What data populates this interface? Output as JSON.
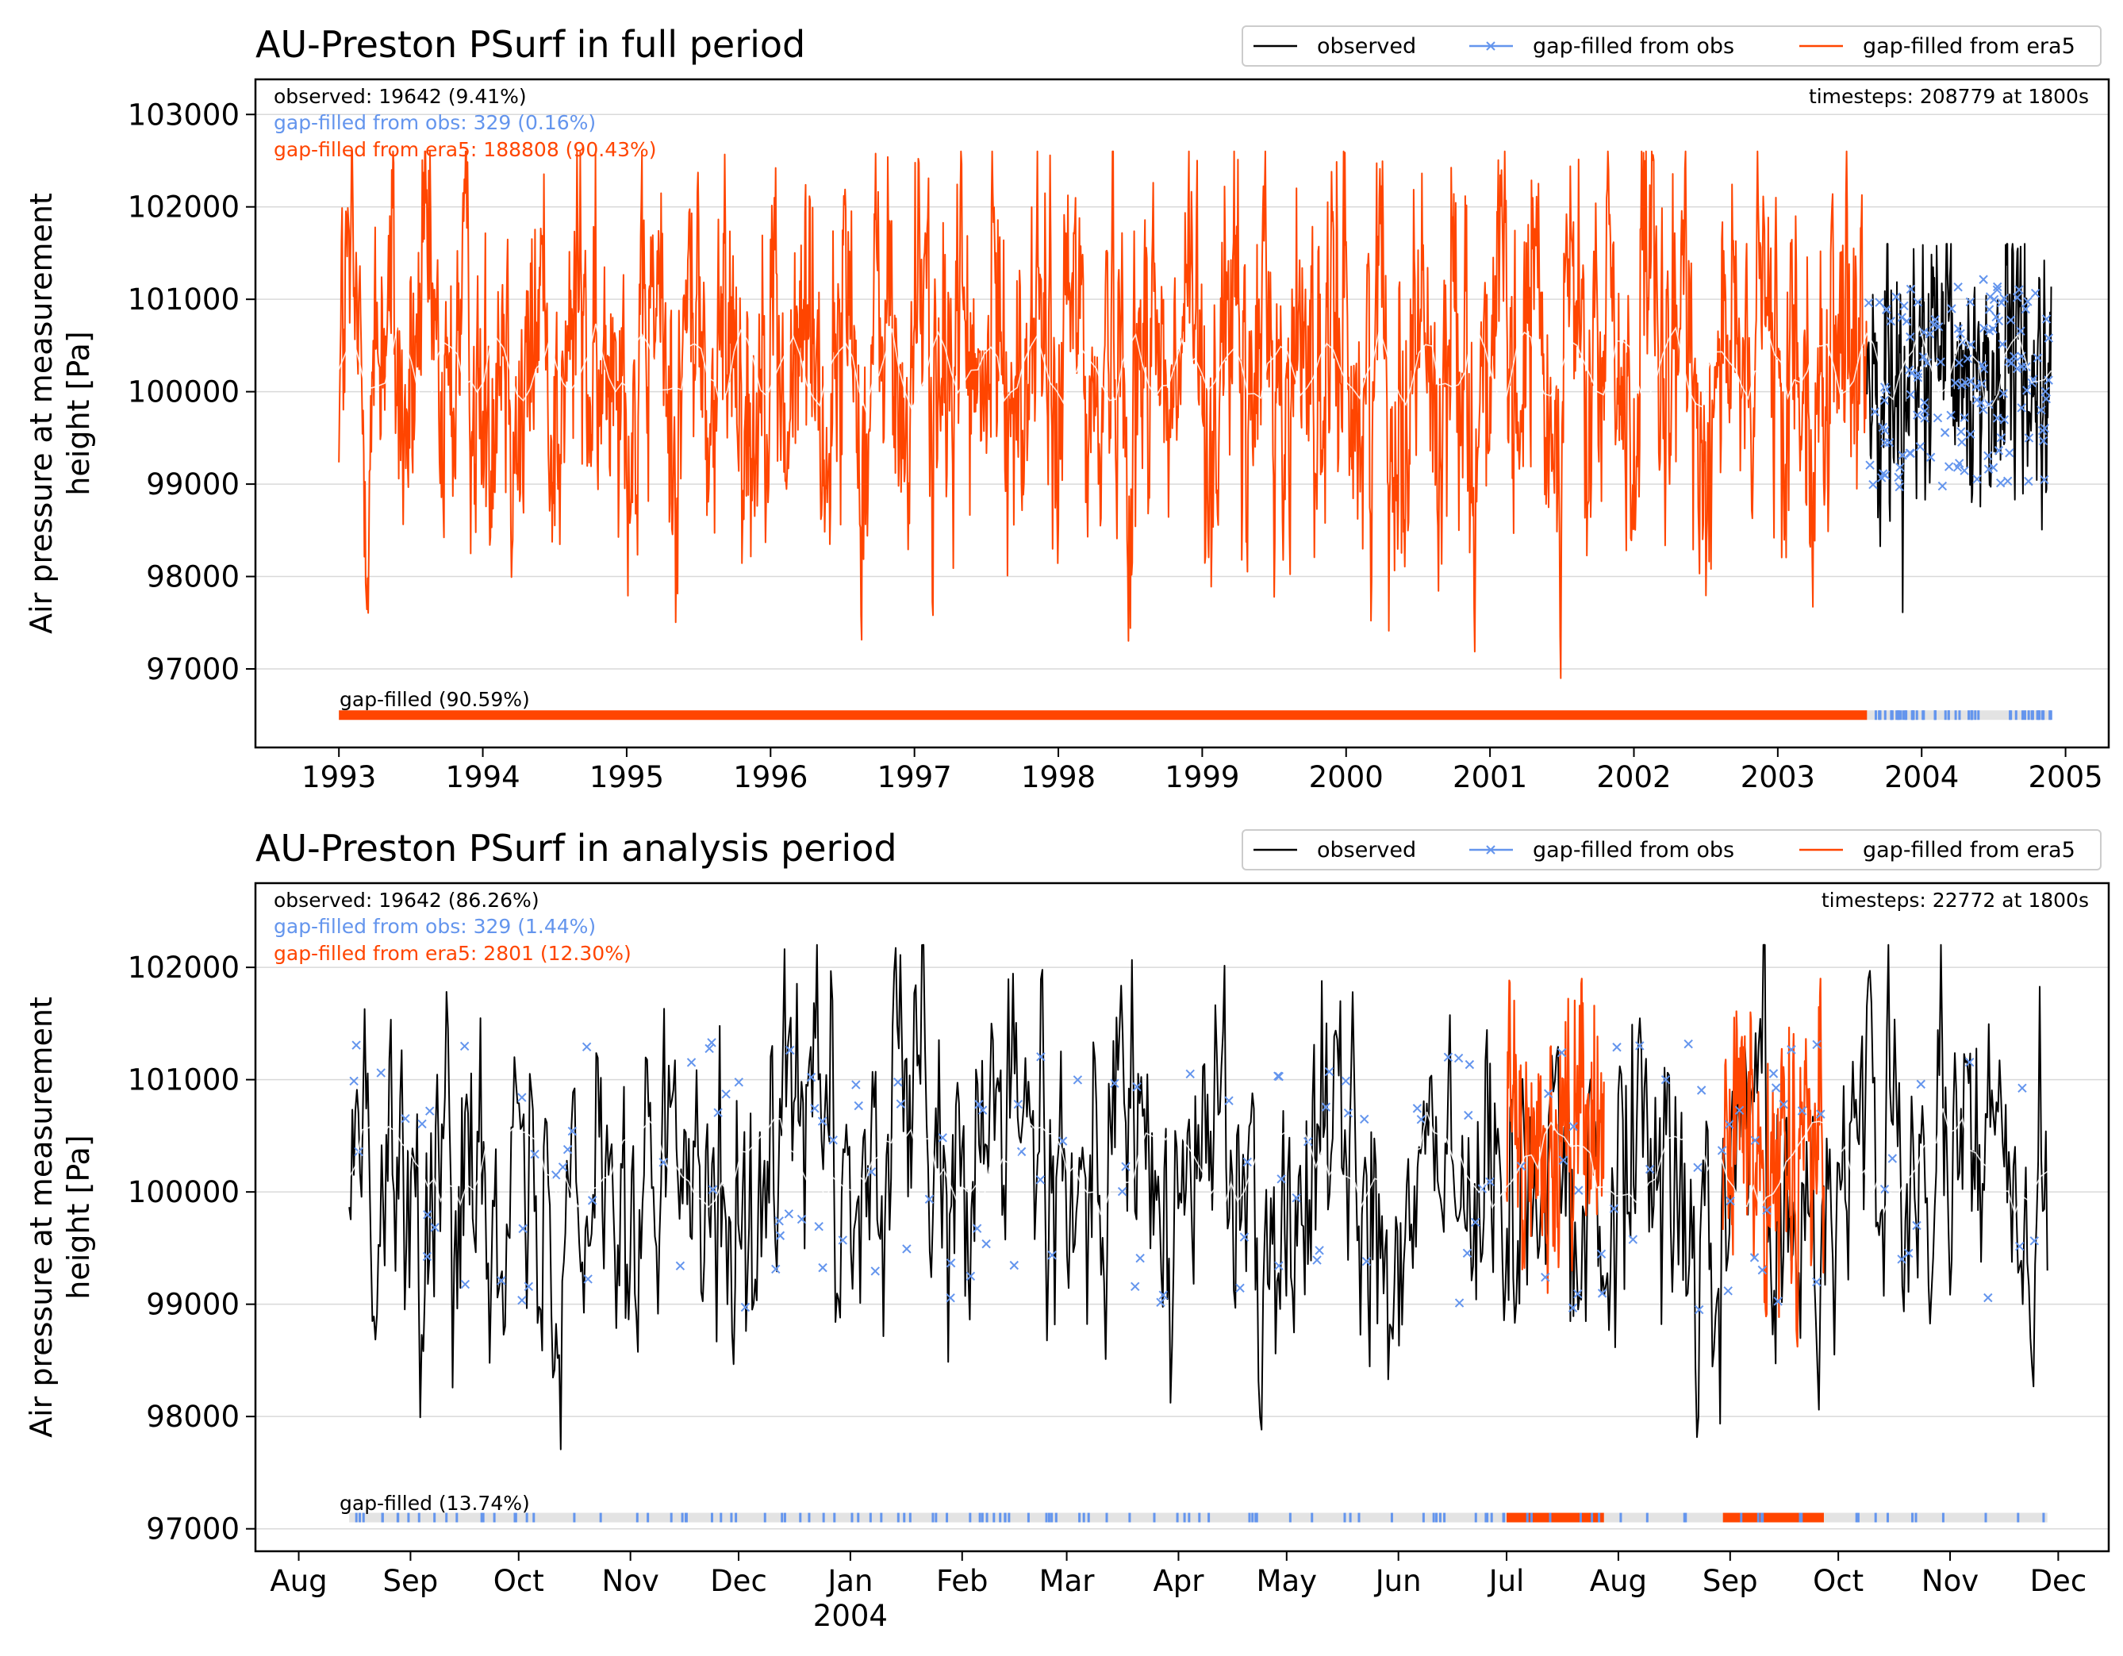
{
  "chart_data": [
    {
      "type": "line",
      "title": "AU-Preston PSurf in full period",
      "ylabel": "Air pressure at measurement\nheight [Pa]",
      "xlabel": "",
      "x_kind": "year",
      "xlim": [
        1992.42,
        2005.3
      ],
      "ylim": [
        96150,
        103380
      ],
      "x_ticks": [
        {
          "label": "1993",
          "value": 1993
        },
        {
          "label": "1994",
          "value": 1994
        },
        {
          "label": "1995",
          "value": 1995
        },
        {
          "label": "1996",
          "value": 1996
        },
        {
          "label": "1997",
          "value": 1997
        },
        {
          "label": "1998",
          "value": 1998
        },
        {
          "label": "1999",
          "value": 1999
        },
        {
          "label": "2000",
          "value": 2000
        },
        {
          "label": "2001",
          "value": 2001
        },
        {
          "label": "2002",
          "value": 2002
        },
        {
          "label": "2003",
          "value": 2003
        },
        {
          "label": "2004",
          "value": 2004
        },
        {
          "label": "2005",
          "value": 2005
        }
      ],
      "y_ticks": [
        {
          "label": "97000",
          "value": 97000
        },
        {
          "label": "98000",
          "value": 98000
        },
        {
          "label": "99000",
          "value": 99000
        },
        {
          "label": "100000",
          "value": 100000
        },
        {
          "label": "101000",
          "value": 101000
        },
        {
          "label": "102000",
          "value": 102000
        },
        {
          "label": "103000",
          "value": 103000
        }
      ],
      "grid": "horizontal",
      "legend": {
        "placement": "top-right outside",
        "entries": [
          {
            "name": "observed",
            "color": "#000000",
            "marker": "line"
          },
          {
            "name": "gap-filled from obs",
            "color": "#6495ED",
            "marker": "line-x"
          },
          {
            "name": "gap-filled from era5",
            "color": "#FF4500",
            "marker": "line"
          }
        ]
      },
      "annotations": {
        "observed": "observed: 19642 (9.41%)",
        "gapfilled_obs": "gap-filled from obs: 329 (0.16%)",
        "gapfilled_era5": "gap-filled from era5: 188808 (90.43%)",
        "timesteps": "timesteps: 208779 at 1800s",
        "gapfilled_total": "gap-filled (90.59%)"
      },
      "series": [
        {
          "name": "gap-filled from era5",
          "color": "#FF4500",
          "x_start": 1993.0,
          "x_end": 2003.62,
          "style": "dense noisy trace",
          "range": [
            96900,
            102600
          ],
          "mean_level": 100300
        },
        {
          "name": "observed",
          "color": "#000000",
          "x_start": 2003.62,
          "x_end": 2004.9,
          "style": "dense noisy trace",
          "range": [
            97400,
            101600
          ],
          "mean_level": 100200
        },
        {
          "name": "gap-filled from obs",
          "color": "#6495ED",
          "x_start": 2003.62,
          "x_end": 2004.9,
          "style": "scattered x markers",
          "range": [
            98100,
            101400
          ]
        }
      ],
      "gap_bar": {
        "y_value": 96500,
        "x_start": 1993.0,
        "x_end": 2004.9,
        "era5_until": 2003.62
      }
    },
    {
      "type": "line",
      "title": "AU-Preston PSurf in analysis period",
      "ylabel": "Air pressure at measurement\nheight [Pa]",
      "xlabel": "",
      "x_kind": "date",
      "xlim": [
        "2003-07-20",
        "2004-12-15"
      ],
      "ylim": [
        96800,
        102750
      ],
      "x_ticks": [
        {
          "label": "Aug",
          "value": "2003-08-01"
        },
        {
          "label": "Sep",
          "value": "2003-09-01"
        },
        {
          "label": "Oct",
          "value": "2003-10-01"
        },
        {
          "label": "Nov",
          "value": "2003-11-01"
        },
        {
          "label": "Dec",
          "value": "2003-12-01"
        },
        {
          "label": "Jan",
          "value": "2004-01-01"
        },
        {
          "label": "Feb",
          "value": "2004-02-01"
        },
        {
          "label": "Mar",
          "value": "2004-03-01"
        },
        {
          "label": "Apr",
          "value": "2004-04-01"
        },
        {
          "label": "May",
          "value": "2004-05-01"
        },
        {
          "label": "Jun",
          "value": "2004-06-01"
        },
        {
          "label": "Jul",
          "value": "2004-07-01"
        },
        {
          "label": "Aug",
          "value": "2004-08-01"
        },
        {
          "label": "Sep",
          "value": "2004-09-01"
        },
        {
          "label": "Oct",
          "value": "2004-10-01"
        },
        {
          "label": "Nov",
          "value": "2004-11-01"
        },
        {
          "label": "Dec",
          "value": "2004-12-01"
        }
      ],
      "x_year_label": {
        "label": "2004",
        "value": "2004-01-01"
      },
      "y_ticks": [
        {
          "label": "97000",
          "value": 97000
        },
        {
          "label": "98000",
          "value": 98000
        },
        {
          "label": "99000",
          "value": 99000
        },
        {
          "label": "100000",
          "value": 100000
        },
        {
          "label": "101000",
          "value": 101000
        },
        {
          "label": "102000",
          "value": 102000
        }
      ],
      "grid": "horizontal",
      "legend": {
        "placement": "top-right outside",
        "entries": [
          {
            "name": "observed",
            "color": "#000000",
            "marker": "line"
          },
          {
            "name": "gap-filled from obs",
            "color": "#6495ED",
            "marker": "line-x"
          },
          {
            "name": "gap-filled from era5",
            "color": "#FF4500",
            "marker": "line"
          }
        ]
      },
      "annotations": {
        "observed": "observed: 19642 (86.26%)",
        "gapfilled_obs": "gap-filled from obs: 329 (1.44%)",
        "gapfilled_era5": "gap-filled from era5: 2801 (12.30%)",
        "timesteps": "timesteps: 22772 at 1800s",
        "gapfilled_total": "gap-filled (13.74%)"
      },
      "series": [
        {
          "name": "observed",
          "color": "#000000",
          "x_start": "2003-08-15",
          "x_end": "2004-11-28",
          "style": "dense noisy trace",
          "range": [
            97400,
            102200
          ],
          "mean_level": 100200
        },
        {
          "name": "gap-filled from era5",
          "color": "#FF4500",
          "segments": [
            [
              "2004-07-01",
              "2004-07-28"
            ],
            [
              "2004-08-30",
              "2004-09-27"
            ]
          ],
          "style": "noisy trace",
          "range": [
            98300,
            101900
          ]
        },
        {
          "name": "gap-filled from obs",
          "color": "#6495ED",
          "x_start": "2003-08-15",
          "x_end": "2004-11-28",
          "style": "scattered x markers",
          "range": [
            98100,
            101500
          ]
        }
      ],
      "gap_bar": {
        "y_value": 97100,
        "x_start": "2003-08-15",
        "x_end": "2004-11-28",
        "era5_segments": [
          [
            "2004-07-01",
            "2004-07-28"
          ],
          [
            "2004-08-30",
            "2004-09-27"
          ]
        ]
      }
    }
  ]
}
